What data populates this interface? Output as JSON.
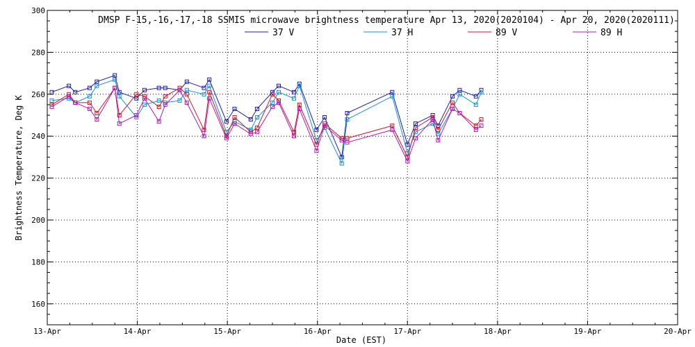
{
  "chart_data": {
    "type": "line",
    "title": "DMSP F-15,-16,-17,-18 SSMIS microwave brightness temperature Apr 13, 2020(2020104) - Apr 20, 2020(2020111)",
    "xlabel": "Date (EST)",
    "ylabel": "Brightness Temperature, Deg K",
    "xlim": [
      13.0,
      20.0
    ],
    "ylim": [
      150,
      300
    ],
    "x_ticks": [
      {
        "value": 13,
        "label": "13-Apr"
      },
      {
        "value": 14,
        "label": "14-Apr"
      },
      {
        "value": 15,
        "label": "15-Apr"
      },
      {
        "value": 16,
        "label": "16-Apr"
      },
      {
        "value": 17,
        "label": "17-Apr"
      },
      {
        "value": 18,
        "label": "18-Apr"
      },
      {
        "value": 19,
        "label": "19-Apr"
      },
      {
        "value": 20,
        "label": "20-Apr"
      }
    ],
    "y_ticks": [
      160,
      180,
      200,
      220,
      240,
      260,
      280,
      300
    ],
    "grid": true,
    "legend_position": "top",
    "series": [
      {
        "name": "37 V",
        "color": "#1c1caa",
        "points": [
          [
            13.05,
            261
          ],
          [
            13.24,
            264
          ],
          [
            13.31,
            261
          ],
          [
            13.47,
            263
          ],
          [
            13.55,
            266
          ],
          [
            13.75,
            269
          ],
          [
            13.8,
            261
          ],
          [
            13.99,
            258
          ],
          [
            14.08,
            262
          ],
          [
            14.24,
            263
          ],
          [
            14.31,
            263
          ],
          [
            14.47,
            262
          ],
          [
            14.55,
            266
          ],
          [
            14.74,
            263
          ],
          [
            14.8,
            267
          ],
          [
            14.99,
            247
          ],
          [
            15.08,
            253
          ],
          [
            15.26,
            248
          ],
          [
            15.33,
            253
          ],
          [
            15.5,
            261
          ],
          [
            15.57,
            264
          ],
          [
            15.74,
            261
          ],
          [
            15.8,
            265
          ],
          [
            15.99,
            243
          ],
          [
            16.08,
            249
          ],
          [
            16.27,
            230
          ],
          [
            16.33,
            251
          ],
          [
            16.83,
            261
          ],
          [
            17.0,
            236
          ],
          [
            17.09,
            246
          ],
          [
            17.28,
            250
          ],
          [
            17.34,
            245
          ],
          [
            17.5,
            259
          ],
          [
            17.58,
            262
          ],
          [
            17.76,
            259
          ],
          [
            17.82,
            262
          ]
        ]
      },
      {
        "name": "37 H",
        "color": "#1a8fd6",
        "points": [
          [
            13.05,
            257
          ],
          [
            13.24,
            258
          ],
          [
            13.31,
            256
          ],
          [
            13.47,
            259
          ],
          [
            13.55,
            264
          ],
          [
            13.75,
            267
          ],
          [
            13.8,
            259
          ],
          [
            13.99,
            249
          ],
          [
            14.08,
            255
          ],
          [
            14.24,
            257
          ],
          [
            14.31,
            256
          ],
          [
            14.47,
            257
          ],
          [
            14.55,
            262
          ],
          [
            14.74,
            260
          ],
          [
            14.8,
            264
          ],
          [
            14.99,
            242
          ],
          [
            15.08,
            247
          ],
          [
            15.26,
            243
          ],
          [
            15.33,
            249
          ],
          [
            15.5,
            256
          ],
          [
            15.57,
            261
          ],
          [
            15.74,
            258
          ],
          [
            15.8,
            264
          ],
          [
            15.99,
            238
          ],
          [
            16.08,
            244
          ],
          [
            16.27,
            227
          ],
          [
            16.33,
            248
          ],
          [
            16.83,
            259
          ],
          [
            17.0,
            232
          ],
          [
            17.09,
            242
          ],
          [
            17.28,
            246
          ],
          [
            17.34,
            241
          ],
          [
            17.5,
            253
          ],
          [
            17.58,
            260
          ],
          [
            17.76,
            255
          ],
          [
            17.82,
            261
          ]
        ]
      },
      {
        "name": "89 V",
        "color": "#cc1a2a",
        "points": [
          [
            13.05,
            255
          ],
          [
            13.24,
            260
          ],
          [
            13.31,
            256
          ],
          [
            13.47,
            256
          ],
          [
            13.55,
            251
          ],
          [
            13.75,
            263
          ],
          [
            13.8,
            250
          ],
          [
            13.99,
            260
          ],
          [
            14.08,
            259
          ],
          [
            14.24,
            254
          ],
          [
            14.31,
            259
          ],
          [
            14.47,
            263
          ],
          [
            14.55,
            260
          ],
          [
            14.74,
            243
          ],
          [
            14.8,
            261
          ],
          [
            14.99,
            240
          ],
          [
            15.08,
            249
          ],
          [
            15.26,
            242
          ],
          [
            15.33,
            244
          ],
          [
            15.5,
            260
          ],
          [
            15.57,
            257
          ],
          [
            15.74,
            242
          ],
          [
            15.8,
            255
          ],
          [
            15.99,
            236
          ],
          [
            16.08,
            246
          ],
          [
            16.27,
            239
          ],
          [
            16.33,
            239
          ],
          [
            16.83,
            245
          ],
          [
            17.0,
            230
          ],
          [
            17.09,
            244
          ],
          [
            17.28,
            249
          ],
          [
            17.34,
            243
          ],
          [
            17.5,
            256
          ],
          [
            17.58,
            251
          ],
          [
            17.76,
            245
          ],
          [
            17.82,
            248
          ]
        ]
      },
      {
        "name": "89 H",
        "color": "#b01aba",
        "points": [
          [
            13.05,
            254
          ],
          [
            13.24,
            259
          ],
          [
            13.31,
            256
          ],
          [
            13.47,
            253
          ],
          [
            13.55,
            248
          ],
          [
            13.75,
            263
          ],
          [
            13.8,
            246
          ],
          [
            13.99,
            250
          ],
          [
            14.08,
            258
          ],
          [
            14.24,
            247
          ],
          [
            14.31,
            255
          ],
          [
            14.47,
            262
          ],
          [
            14.55,
            256
          ],
          [
            14.74,
            240
          ],
          [
            14.8,
            258
          ],
          [
            14.99,
            239
          ],
          [
            15.08,
            246
          ],
          [
            15.26,
            241
          ],
          [
            15.33,
            242
          ],
          [
            15.5,
            254
          ],
          [
            15.57,
            256
          ],
          [
            15.74,
            240
          ],
          [
            15.8,
            253
          ],
          [
            15.99,
            233
          ],
          [
            16.08,
            245
          ],
          [
            16.27,
            238
          ],
          [
            16.33,
            237
          ],
          [
            16.83,
            243
          ],
          [
            17.0,
            228
          ],
          [
            17.09,
            239
          ],
          [
            17.28,
            248
          ],
          [
            17.34,
            238
          ],
          [
            17.5,
            253
          ],
          [
            17.58,
            251
          ],
          [
            17.76,
            243
          ],
          [
            17.82,
            245
          ]
        ]
      }
    ]
  }
}
